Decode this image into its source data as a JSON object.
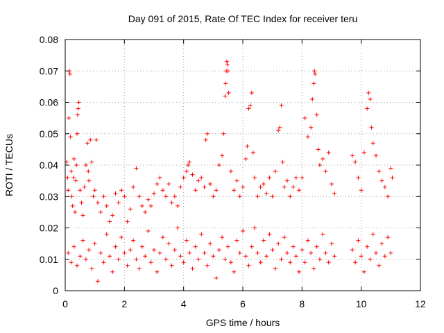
{
  "chart_data": {
    "type": "scatter",
    "title": "Day 091 of 2015, Rate Of TEC Index for receiver teru",
    "xlabel": "GPS time / hours",
    "ylabel": "ROTI / TECUs",
    "xlim": [
      0,
      12
    ],
    "ylim": [
      0,
      0.08
    ],
    "xticks": [
      0,
      2,
      4,
      6,
      8,
      10,
      12
    ],
    "yticks": [
      0,
      0.01,
      0.02,
      0.03,
      0.04,
      0.05,
      0.06,
      0.07,
      0.08
    ],
    "xtick_labels": [
      "0",
      "2",
      "4",
      "6",
      "8",
      "10",
      "12"
    ],
    "ytick_labels": [
      "0",
      "0.01",
      "0.02",
      "0.03",
      "0.04",
      "0.05",
      "0.06",
      "0.07",
      "0.08"
    ],
    "grid": true,
    "marker": "+",
    "color": "#ff0000",
    "series": [
      {
        "name": "ROTI",
        "points": [
          [
            0.05,
            0.041
          ],
          [
            0.08,
            0.036
          ],
          [
            0.1,
            0.032
          ],
          [
            0.12,
            0.055
          ],
          [
            0.14,
            0.07
          ],
          [
            0.16,
            0.069
          ],
          [
            0.18,
            0.049
          ],
          [
            0.2,
            0.038
          ],
          [
            0.22,
            0.03
          ],
          [
            0.25,
            0.027
          ],
          [
            0.28,
            0.036
          ],
          [
            0.3,
            0.042
          ],
          [
            0.33,
            0.025
          ],
          [
            0.36,
            0.035
          ],
          [
            0.38,
            0.04
          ],
          [
            0.4,
            0.05
          ],
          [
            0.42,
            0.056
          ],
          [
            0.44,
            0.058
          ],
          [
            0.46,
            0.06
          ],
          [
            0.5,
            0.032
          ],
          [
            0.55,
            0.028
          ],
          [
            0.6,
            0.024
          ],
          [
            0.65,
            0.033
          ],
          [
            0.7,
            0.04
          ],
          [
            0.75,
            0.047
          ],
          [
            0.78,
            0.038
          ],
          [
            0.8,
            0.035
          ],
          [
            0.85,
            0.048
          ],
          [
            0.9,
            0.041
          ],
          [
            0.95,
            0.03
          ],
          [
            1.0,
            0.032
          ],
          [
            1.05,
            0.048
          ],
          [
            1.1,
            0.028
          ],
          [
            1.2,
            0.025
          ],
          [
            1.3,
            0.03
          ],
          [
            1.4,
            0.027
          ],
          [
            1.5,
            0.022
          ],
          [
            1.6,
            0.024
          ],
          [
            1.7,
            0.031
          ],
          [
            1.8,
            0.028
          ],
          [
            1.9,
            0.032
          ],
          [
            2.0,
            0.03
          ],
          [
            2.1,
            0.022
          ],
          [
            2.2,
            0.026
          ],
          [
            2.3,
            0.033
          ],
          [
            2.4,
            0.039
          ],
          [
            2.5,
            0.03
          ],
          [
            2.6,
            0.027
          ],
          [
            2.7,
            0.025
          ],
          [
            2.8,
            0.029
          ],
          [
            2.9,
            0.027
          ],
          [
            3.0,
            0.031
          ],
          [
            3.1,
            0.034
          ],
          [
            3.2,
            0.036
          ],
          [
            3.3,
            0.032
          ],
          [
            3.4,
            0.03
          ],
          [
            3.5,
            0.034
          ],
          [
            3.6,
            0.028
          ],
          [
            3.7,
            0.03
          ],
          [
            3.8,
            0.027
          ],
          [
            3.9,
            0.033
          ],
          [
            4.0,
            0.036
          ],
          [
            4.1,
            0.038
          ],
          [
            4.15,
            0.04
          ],
          [
            4.2,
            0.041
          ],
          [
            4.3,
            0.037
          ],
          [
            4.4,
            0.032
          ],
          [
            4.5,
            0.035
          ],
          [
            4.6,
            0.036
          ],
          [
            4.7,
            0.033
          ],
          [
            4.75,
            0.048
          ],
          [
            4.8,
            0.05
          ],
          [
            4.9,
            0.034
          ],
          [
            5.0,
            0.03
          ],
          [
            5.1,
            0.032
          ],
          [
            5.2,
            0.04
          ],
          [
            5.3,
            0.043
          ],
          [
            5.35,
            0.05
          ],
          [
            5.4,
            0.062
          ],
          [
            5.42,
            0.066
          ],
          [
            5.44,
            0.07
          ],
          [
            5.46,
            0.073
          ],
          [
            5.48,
            0.072
          ],
          [
            5.5,
            0.07
          ],
          [
            5.52,
            0.063
          ],
          [
            5.6,
            0.038
          ],
          [
            5.7,
            0.032
          ],
          [
            5.8,
            0.035
          ],
          [
            5.9,
            0.03
          ],
          [
            6.0,
            0.033
          ],
          [
            6.1,
            0.042
          ],
          [
            6.15,
            0.046
          ],
          [
            6.2,
            0.058
          ],
          [
            6.25,
            0.059
          ],
          [
            6.3,
            0.063
          ],
          [
            6.35,
            0.044
          ],
          [
            6.4,
            0.036
          ],
          [
            6.5,
            0.03
          ],
          [
            6.6,
            0.033
          ],
          [
            6.7,
            0.034
          ],
          [
            6.8,
            0.031
          ],
          [
            6.9,
            0.036
          ],
          [
            7.0,
            0.03
          ],
          [
            7.1,
            0.038
          ],
          [
            7.2,
            0.051
          ],
          [
            7.25,
            0.052
          ],
          [
            7.3,
            0.059
          ],
          [
            7.35,
            0.041
          ],
          [
            7.4,
            0.033
          ],
          [
            7.5,
            0.035
          ],
          [
            7.6,
            0.03
          ],
          [
            7.7,
            0.033
          ],
          [
            7.8,
            0.036
          ],
          [
            7.9,
            0.032
          ],
          [
            8.0,
            0.036
          ],
          [
            8.1,
            0.055
          ],
          [
            8.2,
            0.049
          ],
          [
            8.3,
            0.052
          ],
          [
            8.35,
            0.061
          ],
          [
            8.4,
            0.066
          ],
          [
            8.42,
            0.07
          ],
          [
            8.44,
            0.069
          ],
          [
            8.5,
            0.056
          ],
          [
            8.55,
            0.045
          ],
          [
            8.6,
            0.04
          ],
          [
            8.7,
            0.042
          ],
          [
            8.8,
            0.038
          ],
          [
            8.9,
            0.044
          ],
          [
            9.0,
            0.034
          ],
          [
            9.1,
            0.031
          ],
          [
            9.7,
            0.043
          ],
          [
            9.8,
            0.041
          ],
          [
            9.9,
            0.036
          ],
          [
            10.0,
            0.032
          ],
          [
            10.1,
            0.044
          ],
          [
            10.2,
            0.058
          ],
          [
            10.25,
            0.063
          ],
          [
            10.3,
            0.061
          ],
          [
            10.35,
            0.052
          ],
          [
            10.4,
            0.047
          ],
          [
            10.5,
            0.043
          ],
          [
            10.6,
            0.038
          ],
          [
            10.7,
            0.035
          ],
          [
            10.8,
            0.033
          ],
          [
            10.9,
            0.03
          ],
          [
            11.0,
            0.039
          ],
          [
            11.05,
            0.036
          ],
          [
            0.1,
            0.012
          ],
          [
            0.2,
            0.009
          ],
          [
            0.3,
            0.014
          ],
          [
            0.4,
            0.008
          ],
          [
            0.5,
            0.011
          ],
          [
            0.6,
            0.016
          ],
          [
            0.7,
            0.01
          ],
          [
            0.8,
            0.013
          ],
          [
            0.9,
            0.007
          ],
          [
            1.0,
            0.015
          ],
          [
            1.1,
            0.003
          ],
          [
            1.2,
            0.012
          ],
          [
            1.3,
            0.009
          ],
          [
            1.4,
            0.018
          ],
          [
            1.5,
            0.011
          ],
          [
            1.6,
            0.006
          ],
          [
            1.7,
            0.014
          ],
          [
            1.8,
            0.01
          ],
          [
            1.9,
            0.017
          ],
          [
            2.0,
            0.012
          ],
          [
            2.1,
            0.008
          ],
          [
            2.2,
            0.013
          ],
          [
            2.3,
            0.016
          ],
          [
            2.4,
            0.01
          ],
          [
            2.5,
            0.007
          ],
          [
            2.6,
            0.014
          ],
          [
            2.7,
            0.011
          ],
          [
            2.8,
            0.019
          ],
          [
            2.9,
            0.009
          ],
          [
            3.0,
            0.013
          ],
          [
            3.1,
            0.006
          ],
          [
            3.2,
            0.012
          ],
          [
            3.3,
            0.017
          ],
          [
            3.4,
            0.01
          ],
          [
            3.5,
            0.015
          ],
          [
            3.6,
            0.008
          ],
          [
            3.7,
            0.013
          ],
          [
            3.8,
            0.02
          ],
          [
            3.9,
            0.011
          ],
          [
            4.0,
            0.009
          ],
          [
            4.1,
            0.016
          ],
          [
            4.2,
            0.012
          ],
          [
            4.3,
            0.007
          ],
          [
            4.4,
            0.014
          ],
          [
            4.5,
            0.01
          ],
          [
            4.6,
            0.018
          ],
          [
            4.7,
            0.012
          ],
          [
            4.8,
            0.008
          ],
          [
            4.9,
            0.015
          ],
          [
            5.0,
            0.011
          ],
          [
            5.1,
            0.004
          ],
          [
            5.2,
            0.013
          ],
          [
            5.3,
            0.017
          ],
          [
            5.4,
            0.01
          ],
          [
            5.5,
            0.014
          ],
          [
            5.6,
            0.009
          ],
          [
            5.7,
            0.006
          ],
          [
            5.8,
            0.016
          ],
          [
            5.9,
            0.012
          ],
          [
            6.0,
            0.019
          ],
          [
            6.1,
            0.011
          ],
          [
            6.2,
            0.008
          ],
          [
            6.3,
            0.014
          ],
          [
            6.4,
            0.02
          ],
          [
            6.5,
            0.012
          ],
          [
            6.6,
            0.009
          ],
          [
            6.7,
            0.016
          ],
          [
            6.8,
            0.011
          ],
          [
            6.9,
            0.018
          ],
          [
            7.0,
            0.013
          ],
          [
            7.1,
            0.007
          ],
          [
            7.2,
            0.015
          ],
          [
            7.3,
            0.01
          ],
          [
            7.4,
            0.017
          ],
          [
            7.5,
            0.012
          ],
          [
            7.6,
            0.009
          ],
          [
            7.7,
            0.014
          ],
          [
            7.8,
            0.011
          ],
          [
            7.9,
            0.006
          ],
          [
            8.0,
            0.013
          ],
          [
            8.1,
            0.009
          ],
          [
            8.2,
            0.016
          ],
          [
            8.3,
            0.012
          ],
          [
            8.4,
            0.007
          ],
          [
            8.5,
            0.014
          ],
          [
            8.6,
            0.01
          ],
          [
            8.7,
            0.018
          ],
          [
            8.8,
            0.012
          ],
          [
            8.9,
            0.009
          ],
          [
            9.0,
            0.015
          ],
          [
            9.1,
            0.011
          ],
          [
            9.7,
            0.013
          ],
          [
            9.8,
            0.009
          ],
          [
            9.9,
            0.016
          ],
          [
            10.0,
            0.011
          ],
          [
            10.1,
            0.006
          ],
          [
            10.2,
            0.014
          ],
          [
            10.3,
            0.01
          ],
          [
            10.4,
            0.018
          ],
          [
            10.5,
            0.012
          ],
          [
            10.6,
            0.008
          ],
          [
            10.7,
            0.015
          ],
          [
            10.8,
            0.011
          ],
          [
            10.9,
            0.017
          ],
          [
            11.0,
            0.012
          ]
        ]
      }
    ]
  }
}
